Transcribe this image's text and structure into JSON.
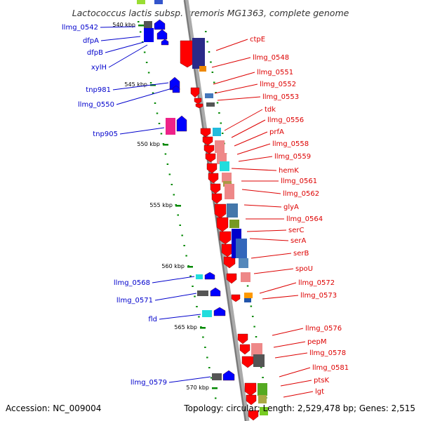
{
  "title": "Lactococcus lactis subsp. cremoris MG1363, complete genome",
  "footer": {
    "accession": "Accession: NC_009004",
    "stats": "Topology: circular; Length: 2,529,478 bp; Genes: 2,515"
  },
  "colors": {
    "label_left": "#0000cc",
    "label_right": "#dd0000",
    "scale_tick": "#008800",
    "backbone": "#888888",
    "gene_forward": "#0000ff",
    "gene_reverse": "#ff0000"
  },
  "scale_marks": [
    "540 kbp",
    "545 kbp",
    "550 kbp",
    "555 kbp",
    "560 kbp",
    "565 kbp",
    "570 kbp"
  ],
  "left_labels": [
    "llmg_0542",
    "dfpA",
    "dfpB",
    "xylH",
    "tnp981",
    "llmg_0550",
    "tnp905",
    "llmg_0568",
    "llmg_0571",
    "fld",
    "llmg_0579"
  ],
  "right_labels": [
    "ctpE",
    "llmg_0548",
    "llmg_0551",
    "llmg_0552",
    "llmg_0553",
    "tdk",
    "llmg_0556",
    "prfA",
    "llmg_0558",
    "llmg_0559",
    "hemK",
    "llmg_0561",
    "llmg_0562",
    "glyA",
    "llmg_0564",
    "serC",
    "serA",
    "serB",
    "spoU",
    "llmg_0572",
    "llmg_0573",
    "llmg_0576",
    "pepM",
    "llmg_0578",
    "llmg_0581",
    "ptsK",
    "lgt"
  ]
}
